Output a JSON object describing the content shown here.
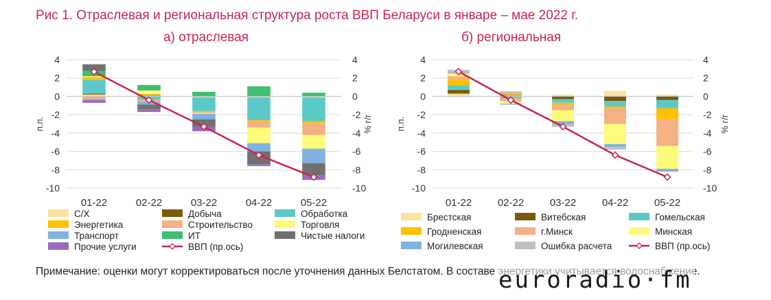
{
  "figure_title": "Рис 1. Отраслевая и региональная структура роста ВВП Беларуси в январе – мае 2022 г.",
  "note": "Примечание: оценки могут корректироваться после уточнения данных Белстатом. В составе энергетики учитывается водоснабжение.",
  "logo_text": "euroradio·fm",
  "colors": {
    "title": "#c8264e",
    "line": "#c8264e"
  },
  "chart_data": [
    {
      "type": "bar",
      "stacked": true,
      "title": "а) отраслевая",
      "categories": [
        "01-22",
        "02-22",
        "03-22",
        "04-22",
        "05-22"
      ],
      "ylabel": "п.п.",
      "y2label": "% г/г",
      "ylim": [
        -10,
        4
      ],
      "y2lim": [
        -10,
        4
      ],
      "yticks": [
        4,
        2,
        0,
        -2,
        -4,
        -6,
        -8,
        -10
      ],
      "grid": true,
      "legend_position": "bottom",
      "series": [
        {
          "name": "С/Х",
          "color": "#fbe3a0",
          "values": [
            0.2,
            0.1,
            -0.1,
            -0.1,
            -0.1
          ]
        },
        {
          "name": "Добыча",
          "color": "#7a5a0c",
          "values": [
            0.1,
            0.05,
            0.0,
            0.0,
            0.0
          ]
        },
        {
          "name": "Обработка",
          "color": "#5cc9c9",
          "values": [
            1.5,
            -0.4,
            -1.5,
            -2.5,
            -2.6
          ]
        },
        {
          "name": "Энергетика",
          "color": "#ffc000",
          "values": [
            0.3,
            0.1,
            -0.1,
            -0.1,
            -0.2
          ]
        },
        {
          "name": "Строительство",
          "color": "#f4b183",
          "values": [
            -0.3,
            -0.2,
            -0.1,
            -0.7,
            -1.3
          ]
        },
        {
          "name": "Торговля",
          "color": "#fffb7a",
          "values": [
            0.1,
            0.4,
            -0.1,
            -1.7,
            -1.5
          ]
        },
        {
          "name": "Транспорт",
          "color": "#7fb2e0",
          "values": [
            -0.1,
            -0.3,
            -0.6,
            -0.9,
            -1.6
          ]
        },
        {
          "name": "ИТ",
          "color": "#3cbf6e",
          "values": [
            0.6,
            0.6,
            0.5,
            1.1,
            0.4
          ]
        },
        {
          "name": "Чистые налоги",
          "color": "#707070",
          "values": [
            0.7,
            -0.5,
            -0.8,
            -1.4,
            -1.3
          ]
        },
        {
          "name": "Прочие услуги",
          "color": "#9b6ac0",
          "values": [
            -0.3,
            -0.3,
            -0.5,
            -0.2,
            -0.5
          ]
        }
      ],
      "line": {
        "name": "ВВП (пр.ось)",
        "color": "#c8264e",
        "values": [
          2.7,
          -0.4,
          -3.3,
          -6.4,
          -8.8
        ]
      }
    },
    {
      "type": "bar",
      "stacked": true,
      "title": "б) региональная",
      "categories": [
        "01-22",
        "02-22",
        "03-22",
        "04-22",
        "05-22"
      ],
      "ylabel": "п.п.",
      "y2label": "% г/г",
      "ylim": [
        -10,
        4
      ],
      "y2lim": [
        -10,
        4
      ],
      "yticks": [
        4,
        2,
        0,
        -2,
        -4,
        -6,
        -8,
        -10
      ],
      "grid": true,
      "legend_position": "bottom",
      "series": [
        {
          "name": "Брестская",
          "color": "#fbe3a0",
          "values": [
            0.3,
            0.1,
            0.2,
            0.6,
            0.2
          ]
        },
        {
          "name": "Витебская",
          "color": "#7a5a0c",
          "values": [
            0.4,
            0.05,
            -0.3,
            -0.5,
            -0.4
          ]
        },
        {
          "name": "Гомельская",
          "color": "#5cc9c9",
          "values": [
            0.5,
            -0.2,
            -0.4,
            -0.6,
            -0.9
          ]
        },
        {
          "name": "Гродненская",
          "color": "#ffc000",
          "values": [
            0.6,
            0.1,
            -0.2,
            -0.2,
            -1.2
          ]
        },
        {
          "name": "г.Минск",
          "color": "#f4b183",
          "values": [
            0.4,
            -0.3,
            -0.6,
            -1.7,
            -2.9
          ]
        },
        {
          "name": "Минская",
          "color": "#fffb7a",
          "values": [
            0.3,
            -0.3,
            -1.2,
            -2.2,
            -2.5
          ]
        },
        {
          "name": "Могилевская",
          "color": "#7fb2e0",
          "values": [
            0.1,
            -0.1,
            -0.3,
            -0.3,
            -0.3
          ]
        },
        {
          "name": "Ошибка расчета",
          "color": "#bfbfbf",
          "values": [
            0.3,
            0.3,
            -0.3,
            -0.3,
            0.0
          ]
        }
      ],
      "line": {
        "name": "ВВП (пр.ось)",
        "color": "#c8264e",
        "values": [
          2.7,
          -0.4,
          -3.3,
          -6.4,
          -8.8
        ]
      }
    }
  ]
}
